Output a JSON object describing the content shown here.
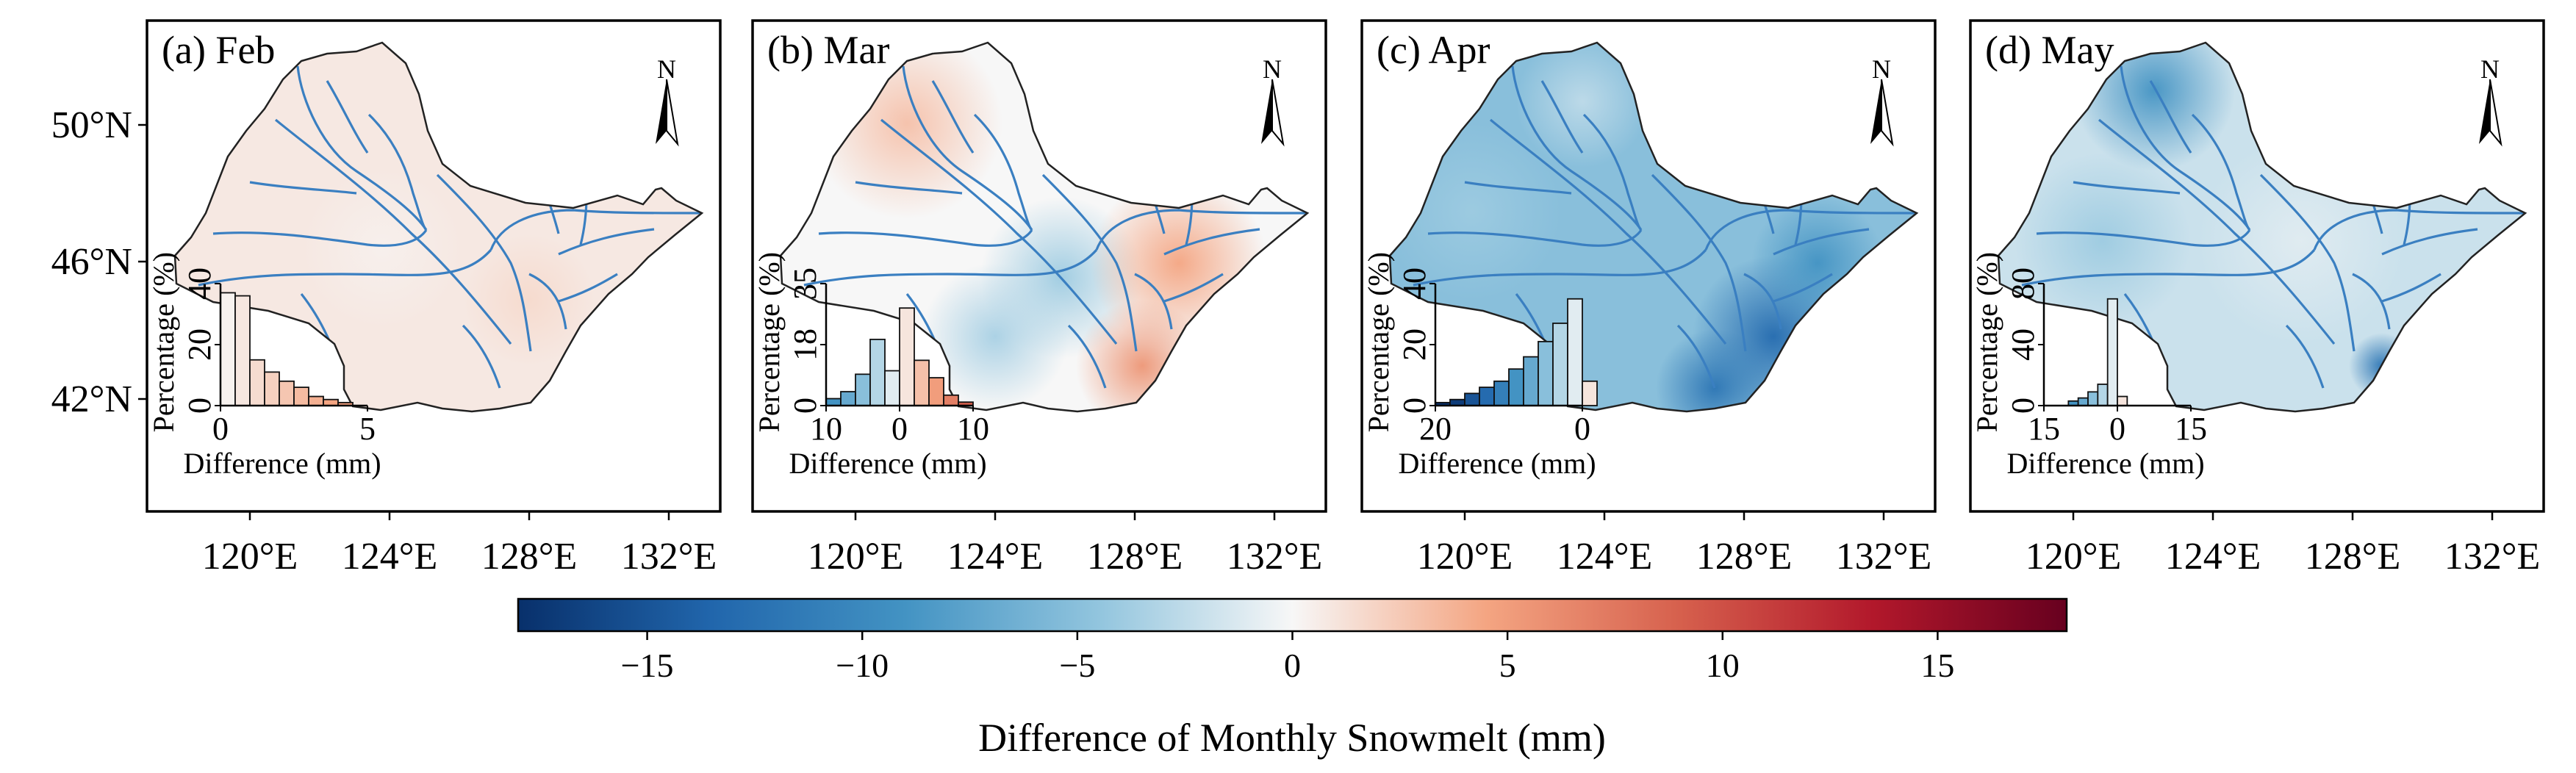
{
  "figure": {
    "panels": [
      {
        "label": "(a) Feb",
        "month": "Feb"
      },
      {
        "label": "(b) Mar",
        "month": "Mar"
      },
      {
        "label": "(c) Apr",
        "month": "Apr"
      },
      {
        "label": "(d) May",
        "month": "May"
      }
    ],
    "north_label": "N",
    "lat_ticks": [
      "42°N",
      "46°N",
      "50°N"
    ],
    "lon_ticks": [
      "120°E",
      "124°E",
      "128°E",
      "132°E"
    ],
    "colorbar": {
      "label": "Difference of Monthly Snowmelt (mm)",
      "ticks": [
        "−15",
        "−10",
        "−5",
        "0",
        "5",
        "10",
        "15"
      ],
      "range": [
        -18,
        18
      ],
      "colormap": "RdBu_r",
      "colors": [
        "#08306b",
        "#2166ac",
        "#4393c3",
        "#92c5de",
        "#f7f7f7",
        "#f4a582",
        "#d6604d",
        "#b2182b",
        "#67001f"
      ]
    },
    "river_color": "#3a7fc1"
  },
  "chart_data": [
    {
      "type": "bar",
      "panel": "(a) Feb",
      "xlabel": "Difference (mm)",
      "ylabel": "Percentage (%)",
      "xlim": [
        0,
        5
      ],
      "ylim": [
        0,
        40
      ],
      "xticks": [
        "0",
        "5"
      ],
      "yticks": [
        "0",
        "20",
        "40"
      ],
      "bins": [
        0,
        0.5,
        1.0,
        1.5,
        2.0,
        2.5,
        3.0,
        3.5,
        4.0
      ],
      "bin_width": 0.5,
      "values": [
        37,
        36,
        15,
        11,
        8,
        6,
        3,
        2,
        1
      ]
    },
    {
      "type": "bar",
      "panel": "(b) Mar",
      "xlabel": "Difference (mm)",
      "ylabel": "Percentage (%)",
      "xlim": [
        -10,
        10
      ],
      "ylim": [
        0,
        35
      ],
      "xticks": [
        "10",
        "0",
        "10"
      ],
      "yticks": [
        "0",
        "18",
        "35"
      ],
      "bins": [
        -10,
        -8,
        -6,
        -4,
        -2,
        0,
        2,
        4,
        6,
        8
      ],
      "bin_width": 2,
      "values": [
        2,
        4,
        9,
        19,
        10,
        28,
        13,
        8,
        3,
        1
      ]
    },
    {
      "type": "bar",
      "panel": "(c) Apr",
      "xlabel": "Difference (mm)",
      "ylabel": "Percentage (%)",
      "xlim": [
        -20,
        0
      ],
      "ylim": [
        0,
        40
      ],
      "xticks": [
        "20",
        "0"
      ],
      "yticks": [
        "0",
        "20",
        "40"
      ],
      "bins": [
        -20,
        -18,
        -16,
        -14,
        -12,
        -10,
        -8,
        -6,
        -4,
        -2,
        0
      ],
      "bin_width": 2,
      "values": [
        1,
        2,
        4,
        6,
        8,
        12,
        16,
        21,
        27,
        35,
        8
      ]
    },
    {
      "type": "bar",
      "panel": "(d) May",
      "xlabel": "Difference (mm)",
      "ylabel": "Percentage (%)",
      "xlim": [
        -15,
        15
      ],
      "ylim": [
        0,
        80
      ],
      "xticks": [
        "15",
        "0",
        "15"
      ],
      "yticks": [
        "0",
        "40",
        "80"
      ],
      "bins": [
        -10,
        -8,
        -6,
        -4,
        -2,
        0
      ],
      "bin_width": 2,
      "values": [
        3,
        5,
        9,
        14,
        70,
        6
      ]
    }
  ]
}
